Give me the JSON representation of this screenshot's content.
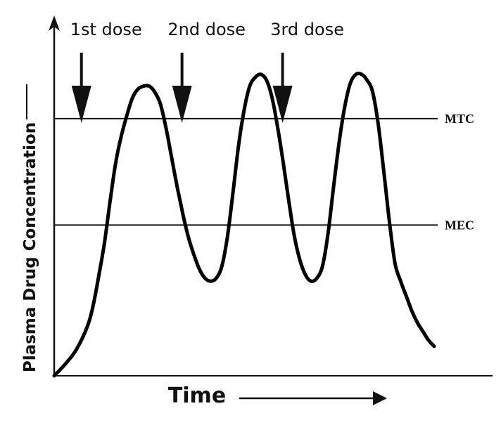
{
  "chart_data": {
    "type": "line",
    "ylabel": "Plasma Drug Concentration",
    "xlabel": "Time",
    "grid": false,
    "series": [
      {
        "values_xy": [
          [
            0,
            0
          ],
          [
            2,
            4
          ],
          [
            4,
            9
          ],
          [
            6,
            17
          ],
          [
            7,
            24
          ],
          [
            8,
            34
          ],
          [
            9,
            45
          ],
          [
            10,
            59
          ],
          [
            11,
            72
          ],
          [
            12,
            81
          ],
          [
            13,
            88
          ],
          [
            14,
            94
          ],
          [
            15,
            97
          ],
          [
            16,
            98
          ],
          [
            17,
            98
          ],
          [
            18,
            96
          ],
          [
            19,
            92
          ],
          [
            20,
            84
          ],
          [
            21,
            74
          ],
          [
            22,
            64
          ],
          [
            23,
            55
          ],
          [
            24,
            47
          ],
          [
            25,
            41
          ],
          [
            26,
            36
          ],
          [
            27,
            33
          ],
          [
            28,
            32
          ],
          [
            29,
            33
          ],
          [
            30,
            37
          ],
          [
            31,
            47
          ],
          [
            32,
            62
          ],
          [
            33,
            78
          ],
          [
            34,
            90
          ],
          [
            35,
            98
          ],
          [
            36,
            101
          ],
          [
            37,
            102
          ],
          [
            38,
            100
          ],
          [
            39,
            94
          ],
          [
            40,
            84
          ],
          [
            41,
            72
          ],
          [
            42,
            59
          ],
          [
            43,
            47
          ],
          [
            44,
            39
          ],
          [
            45,
            34
          ],
          [
            46,
            32
          ],
          [
            47,
            33
          ],
          [
            48,
            37
          ],
          [
            49,
            48
          ],
          [
            50,
            64
          ],
          [
            51,
            79
          ],
          [
            52,
            91
          ],
          [
            53,
            99
          ],
          [
            54,
            102
          ],
          [
            55,
            102
          ],
          [
            56,
            100
          ],
          [
            57,
            96
          ],
          [
            58,
            85
          ],
          [
            59,
            69
          ],
          [
            60,
            52
          ],
          [
            61,
            38
          ],
          [
            62,
            32
          ],
          [
            63,
            27
          ],
          [
            64,
            22
          ],
          [
            65,
            18
          ],
          [
            66,
            15
          ],
          [
            67,
            12
          ],
          [
            68,
            10
          ]
        ]
      }
    ],
    "reference_lines": [
      {
        "label": "MTC",
        "y": 87
      },
      {
        "label": "MEC",
        "y": 51
      }
    ],
    "annotations": [
      {
        "label": "1st dose",
        "x": 5
      },
      {
        "label": "2nd dose",
        "x": 23
      },
      {
        "label": "3rd dose",
        "x": 41
      }
    ],
    "xlim": [
      0,
      68
    ],
    "ylim": [
      0,
      120
    ]
  }
}
